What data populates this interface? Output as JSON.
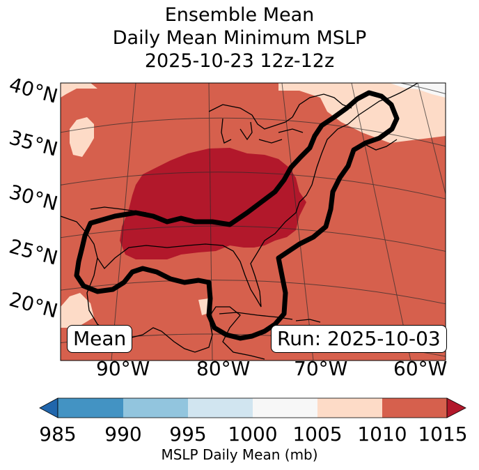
{
  "title": {
    "line1": "Ensemble Mean",
    "line2": "Daily Mean Minimum MSLP",
    "line3": "2025-10-23 12z-12z"
  },
  "map": {
    "lat_labels": [
      "40°N",
      "35°N",
      "30°N",
      "25°N",
      "20°N"
    ],
    "lon_labels": [
      "90°W",
      "80°W",
      "70°W",
      "60°W"
    ],
    "mean_box": "Mean",
    "run_box": "Run: 2025-10-03"
  },
  "colorbar": {
    "ticks": [
      "985",
      "990",
      "995",
      "1000",
      "1005",
      "1010",
      "1015"
    ],
    "label": "MSLP Daily Mean (mb)",
    "colors": [
      "#2166ac",
      "#4393c3",
      "#92c5de",
      "#d1e5f0",
      "#f7f7f7",
      "#fddbc7",
      "#d6604d",
      "#b2182b"
    ]
  },
  "legend_colors": {
    "low_1015_plus": "#b2182b",
    "range_1010_1015": "#d6604d",
    "range_1005_1010": "#fddbc7",
    "range_1000_1005": "#f7f7f7"
  }
}
